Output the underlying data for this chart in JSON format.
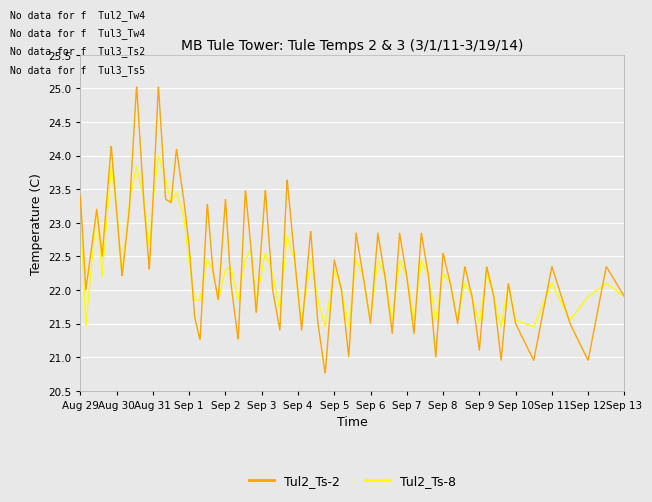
{
  "title": "MB Tule Tower: Tule Temps 2 & 3 (3/1/11-3/19/14)",
  "xlabel": "Time",
  "ylabel": "Temperature (C)",
  "ylim": [
    20.5,
    25.5
  ],
  "yticks": [
    20.5,
    21.0,
    21.5,
    22.0,
    22.5,
    23.0,
    23.5,
    24.0,
    24.5,
    25.0,
    25.5
  ],
  "xtick_labels": [
    "Aug 29",
    "Aug 30",
    "Aug 31",
    "Sep 1",
    "Sep 2",
    "Sep 3",
    "Sep 4",
    "Sep 5",
    "Sep 6",
    "Sep 7",
    "Sep 8",
    "Sep 9",
    "Sep 10",
    "Sep 11",
    "Sep 12",
    "Sep 13"
  ],
  "color_ts2": "#FFA500",
  "color_ts8": "#FFFF00",
  "legend_labels": [
    "Tul2_Ts-2",
    "Tul2_Ts-8"
  ],
  "no_data_texts": [
    "No data for f  Tul2_Tw4",
    "No data for f  Tul3_Tw4",
    "No data for f  Tul3_Ts2",
    "No data for f  Tul3_Ts5"
  ],
  "bg_color": "#E8E8E8",
  "fig_bg": "#E8E8E8"
}
